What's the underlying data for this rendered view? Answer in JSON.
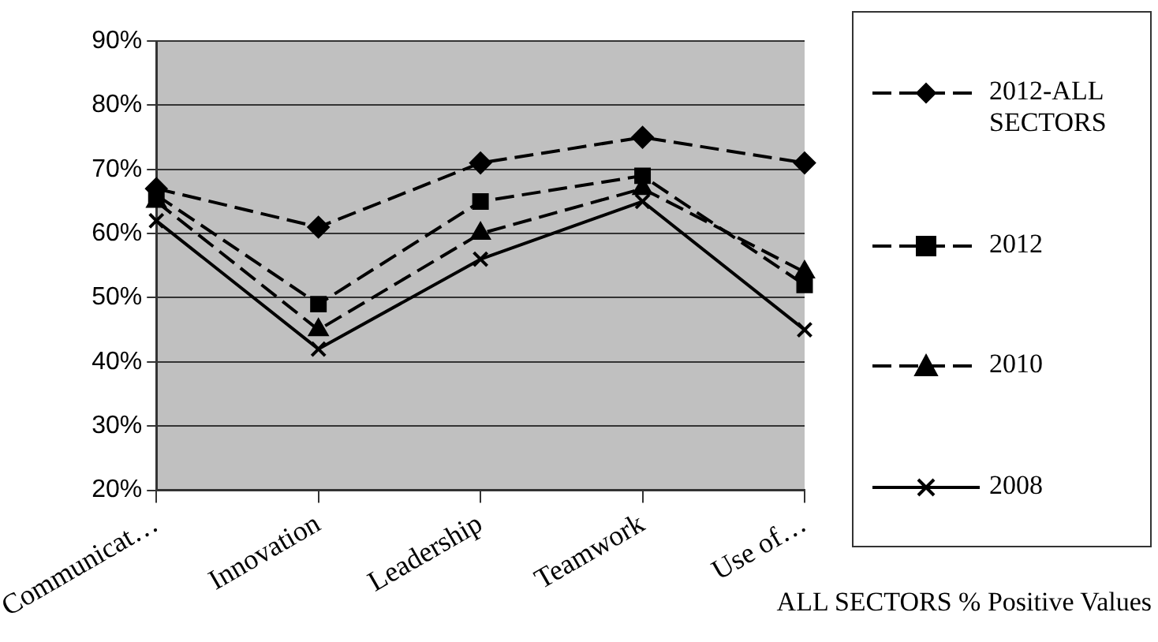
{
  "chart_data": {
    "type": "line",
    "xlabel": "ALL SECTORS % Positive Values",
    "categories": [
      "Communicat…",
      "Innovation",
      "Leadership",
      "Teamwork",
      "Use of…"
    ],
    "series": [
      {
        "name": "2012-ALL SECTORS",
        "color": "#000000",
        "marker": "diamond",
        "line_style": "dashed",
        "values": [
          67,
          61,
          71,
          75,
          71
        ]
      },
      {
        "name": "2012",
        "color": "#000000",
        "marker": "square",
        "line_style": "dashed",
        "values": [
          66,
          49,
          65,
          69,
          52
        ]
      },
      {
        "name": "2010",
        "color": "#000000",
        "marker": "triangle",
        "line_style": "dashed",
        "values": [
          65,
          45,
          60,
          67,
          54
        ]
      },
      {
        "name": "2008",
        "color": "#000000",
        "marker": "cross",
        "line_style": "solid",
        "values": [
          62,
          42,
          56,
          65,
          45
        ]
      }
    ],
    "ylim": [
      20,
      90
    ],
    "yticks": [
      {
        "value": 20,
        "label": "20%"
      },
      {
        "value": 30,
        "label": "30%"
      },
      {
        "value": 40,
        "label": "40%"
      },
      {
        "value": 50,
        "label": "50%"
      },
      {
        "value": 60,
        "label": "60%"
      },
      {
        "value": 70,
        "label": "70%"
      },
      {
        "value": 80,
        "label": "80%"
      },
      {
        "value": 90,
        "label": "90%"
      }
    ],
    "grid": "y",
    "legend": "right"
  }
}
